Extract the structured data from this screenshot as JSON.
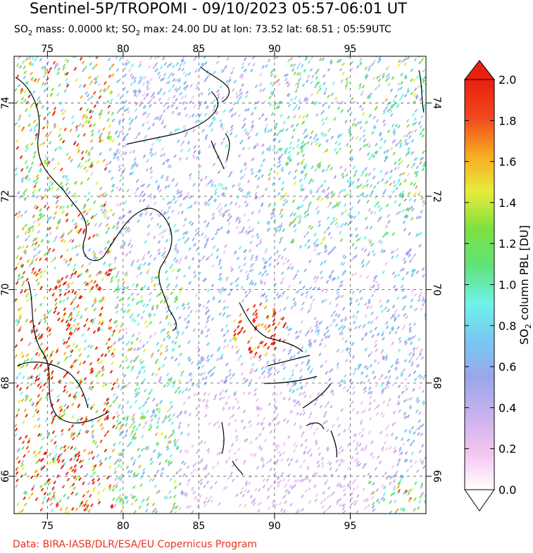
{
  "title": "Sentinel-5P/TROPOMI - 09/10/2023 05:57-06:01 UT",
  "subtitle": {
    "part1": "SO",
    "sub1": "2",
    "part2": " mass: 0.0000 kt; SO",
    "sub2": "2",
    "part3": " max: 24.00 DU at lon: 73.52 lat: 68.51 ; 05:59UTC"
  },
  "credit": "Data: BIRA-IASB/DLR/ESA/EU Copernicus Program",
  "map": {
    "lon_range": [
      72.8,
      100.0
    ],
    "lat_range": [
      65.2,
      75.0
    ],
    "lon_ticks": [
      75,
      80,
      85,
      90,
      95
    ],
    "lon_tick_labels": [
      "75",
      "80",
      "85",
      "90",
      "95"
    ],
    "lat_ticks": [
      66,
      68,
      70,
      72,
      74
    ],
    "lat_tick_labels": [
      "66",
      "68",
      "70",
      "72",
      "74"
    ]
  },
  "colorbar": {
    "label_main": "SO",
    "label_sub": "2",
    "label_rest": " column PBL [DU]",
    "ticks": [
      0.0,
      0.2,
      0.4,
      0.6,
      0.8,
      1.0,
      1.2,
      1.4,
      1.6,
      1.8,
      2.0
    ],
    "tick_labels": [
      "0.0",
      "0.2",
      "0.4",
      "0.6",
      "0.8",
      "1.0",
      "1.2",
      "1.4",
      "1.6",
      "1.8",
      "2.0"
    ],
    "range": [
      0.0,
      2.0
    ],
    "colors": [
      "#ffffff",
      "#f3c4f1",
      "#c9b2ef",
      "#9aa6ea",
      "#78c8f2",
      "#6ff2ea",
      "#5fe37a",
      "#7ee040",
      "#e8ec3a",
      "#f7a823",
      "#f2461d",
      "#e8200e"
    ]
  }
}
